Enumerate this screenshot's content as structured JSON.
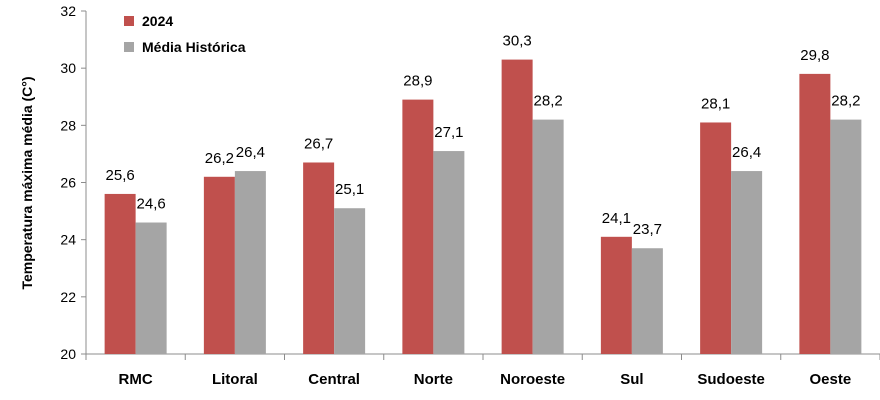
{
  "chart_data": {
    "type": "bar",
    "title": "",
    "xlabel": "",
    "ylabel": "Temperatura máxima média (C°)",
    "ylim": [
      20,
      32
    ],
    "yticks": [
      20,
      22,
      24,
      26,
      28,
      30,
      32
    ],
    "grid": false,
    "legend_position": "top-left",
    "categories": [
      "RMC",
      "Litoral",
      "Central",
      "Norte",
      "Noroeste",
      "Sul",
      "Sudoeste",
      "Oeste"
    ],
    "series": [
      {
        "name": "2024",
        "color": "#c0504d",
        "values": [
          25.6,
          26.2,
          26.7,
          28.9,
          30.3,
          24.1,
          28.1,
          29.8
        ],
        "labels": [
          "25,6",
          "26,2",
          "26,7",
          "28,9",
          "30,3",
          "24,1",
          "28,1",
          "29,8"
        ]
      },
      {
        "name": "Média Histórica",
        "color": "#a5a5a5",
        "values": [
          24.6,
          26.4,
          25.1,
          27.1,
          28.2,
          23.7,
          26.4,
          28.2
        ],
        "labels": [
          "24,6",
          "26,4",
          "25,1",
          "27,1",
          "28,2",
          "23,7",
          "26,4",
          "28,2"
        ]
      }
    ]
  }
}
